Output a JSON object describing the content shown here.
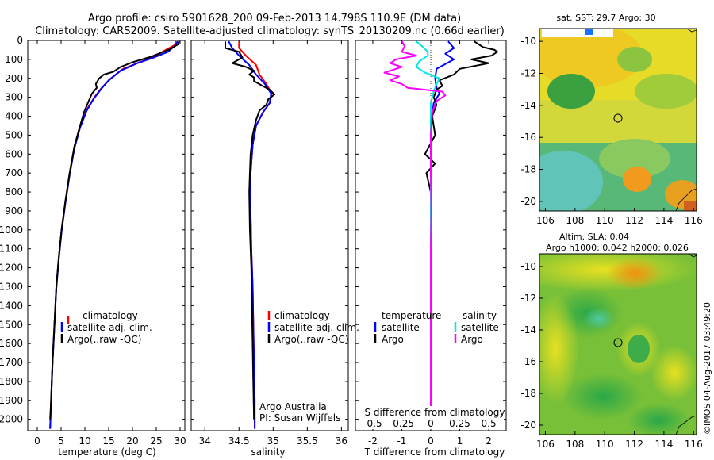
{
  "header": {
    "title_line1": "Argo profile: csiro 5901628_200 09-Feb-2013 14.798S 110.9E (DM data)",
    "title_line2": "Climatology: CARS2009. Satellite-adjusted climatology: synTS_20130209.nc (0.66d earlier)"
  },
  "depth_axis": {
    "ticks": [
      0,
      100,
      200,
      300,
      400,
      500,
      600,
      700,
      800,
      900,
      1000,
      1100,
      1200,
      1300,
      1400,
      1500,
      1600,
      1700,
      1800,
      1900,
      2000
    ],
    "range": [
      0,
      2060
    ]
  },
  "colors": {
    "climatology": "#ff0000",
    "satellite": "#0000ff",
    "argo": "#000000",
    "sal_satellite": "#00e5e5",
    "sal_argo": "#ff00ff"
  },
  "chart_data": [
    {
      "id": "temperature",
      "type": "line",
      "xlabel": "temperature (deg C)",
      "xlim": [
        -2,
        31
      ],
      "xticks": [
        0,
        5,
        10,
        15,
        20,
        25,
        30
      ],
      "legend": [
        "climatology",
        "satellite-adj. clim.",
        "Argo(..raw -QC)"
      ],
      "series": [
        {
          "name": "climatology",
          "color": "#ff0000",
          "points": [
            [
              29.2,
              5
            ],
            [
              28.8,
              25
            ],
            [
              27,
              50
            ],
            [
              25,
              80
            ],
            [
              21.5,
              115
            ],
            [
              18,
              150
            ],
            [
              15.5,
              200
            ],
            [
              13.5,
              250
            ],
            [
              12,
              300
            ],
            [
              10.5,
              360
            ],
            [
              9,
              450
            ],
            [
              7.8,
              560
            ],
            [
              6.8,
              700
            ],
            [
              5.9,
              850
            ],
            [
              5.1,
              1000
            ],
            [
              4.5,
              1150
            ],
            [
              4,
              1300
            ],
            [
              3.6,
              1500
            ],
            [
              3.2,
              1700
            ],
            [
              2.9,
              1900
            ],
            [
              2.7,
              2050
            ]
          ]
        },
        {
          "name": "satellite-adj. clim.",
          "color": "#0000ff",
          "points": [
            [
              29.5,
              5
            ],
            [
              29,
              25
            ],
            [
              27.5,
              60
            ],
            [
              24.5,
              90
            ],
            [
              21,
              120
            ],
            [
              17.5,
              160
            ],
            [
              15,
              210
            ],
            [
              13.3,
              260
            ],
            [
              11.8,
              310
            ],
            [
              10.4,
              370
            ],
            [
              9,
              460
            ],
            [
              7.8,
              570
            ],
            [
              6.8,
              710
            ],
            [
              5.9,
              860
            ],
            [
              5.1,
              1010
            ],
            [
              4.5,
              1160
            ],
            [
              4,
              1310
            ],
            [
              3.6,
              1510
            ],
            [
              3.2,
              1710
            ],
            [
              2.9,
              1910
            ],
            [
              2.7,
              2050
            ]
          ]
        },
        {
          "name": "Argo(..raw -QC)",
          "color": "#000000",
          "points": [
            [
              29.8,
              5
            ],
            [
              29.6,
              20
            ],
            [
              28,
              45
            ],
            [
              26.5,
              60
            ],
            [
              24,
              85
            ],
            [
              20,
              115
            ],
            [
              17.5,
              140
            ],
            [
              16,
              165
            ],
            [
              14,
              180
            ],
            [
              13,
              200
            ],
            [
              12.3,
              230
            ],
            [
              12.5,
              250
            ],
            [
              11.5,
              280
            ],
            [
              10.8,
              320
            ],
            [
              9.8,
              380
            ],
            [
              9,
              450
            ],
            [
              7.8,
              560
            ],
            [
              6.8,
              700
            ],
            [
              5.9,
              850
            ],
            [
              5.1,
              1000
            ],
            [
              4.5,
              1150
            ],
            [
              4,
              1300
            ],
            [
              3.6,
              1500
            ],
            [
              3.2,
              1700
            ],
            [
              2.9,
              1900
            ],
            [
              2.7,
              2000
            ]
          ]
        }
      ]
    },
    {
      "id": "salinity",
      "type": "line",
      "xlabel": "salinity",
      "xlim": [
        33.8,
        36.1
      ],
      "xticks": [
        34,
        34.5,
        35,
        35.5,
        36
      ],
      "legend": [
        "climatology",
        "satellite-adj. clim.",
        "Argo(..raw -QC)"
      ],
      "annotation": [
        "Argo Australia",
        "PI: Susan Wijffels"
      ],
      "series": [
        {
          "name": "climatology",
          "color": "#ff0000",
          "points": [
            [
              34.5,
              5
            ],
            [
              34.5,
              40
            ],
            [
              34.6,
              80
            ],
            [
              34.75,
              130
            ],
            [
              34.8,
              180
            ],
            [
              34.9,
              230
            ],
            [
              34.98,
              280
            ],
            [
              34.95,
              330
            ],
            [
              34.85,
              380
            ],
            [
              34.75,
              450
            ],
            [
              34.7,
              550
            ],
            [
              34.67,
              700
            ],
            [
              34.67,
              900
            ],
            [
              34.68,
              1100
            ],
            [
              34.7,
              1300
            ],
            [
              34.71,
              1500
            ],
            [
              34.72,
              1700
            ],
            [
              34.73,
              1900
            ],
            [
              34.73,
              2050
            ]
          ]
        },
        {
          "name": "satellite-adj. clim.",
          "color": "#0000ff",
          "points": [
            [
              34.35,
              5
            ],
            [
              34.4,
              40
            ],
            [
              34.5,
              80
            ],
            [
              34.65,
              130
            ],
            [
              34.75,
              180
            ],
            [
              34.88,
              230
            ],
            [
              34.97,
              280
            ],
            [
              34.95,
              330
            ],
            [
              34.85,
              380
            ],
            [
              34.75,
              450
            ],
            [
              34.7,
              550
            ],
            [
              34.67,
              700
            ],
            [
              34.67,
              900
            ],
            [
              34.68,
              1100
            ],
            [
              34.7,
              1300
            ],
            [
              34.71,
              1500
            ],
            [
              34.72,
              1700
            ],
            [
              34.73,
              1900
            ],
            [
              34.73,
              2050
            ]
          ]
        },
        {
          "name": "Argo(..raw -QC)",
          "color": "#000000",
          "points": [
            [
              34.3,
              5
            ],
            [
              34.3,
              40
            ],
            [
              34.5,
              60
            ],
            [
              34.55,
              90
            ],
            [
              34.4,
              120
            ],
            [
              34.6,
              140
            ],
            [
              34.72,
              160
            ],
            [
              34.65,
              180
            ],
            [
              34.72,
              195
            ],
            [
              34.72,
              215
            ],
            [
              34.82,
              235
            ],
            [
              34.95,
              260
            ],
            [
              35.02,
              285
            ],
            [
              34.93,
              310
            ],
            [
              34.9,
              340
            ],
            [
              34.8,
              370
            ],
            [
              34.75,
              420
            ],
            [
              34.7,
              500
            ],
            [
              34.67,
              600
            ],
            [
              34.66,
              700
            ],
            [
              34.65,
              800
            ],
            [
              34.66,
              1000
            ],
            [
              34.68,
              1200
            ],
            [
              34.69,
              1400
            ],
            [
              34.7,
              1600
            ],
            [
              34.71,
              1800
            ],
            [
              34.72,
              2000
            ]
          ]
        }
      ]
    },
    {
      "id": "difference",
      "type": "line",
      "xlabel": "T difference from climatology",
      "xlabel_top": "S difference from climatology",
      "xlim": [
        -2.6,
        2.6
      ],
      "xticks": [
        -2,
        -1,
        0,
        1,
        2
      ],
      "top_ticks": [
        {
          "label": "-0.5",
          "x": -2
        },
        {
          "label": "-0.25",
          "x": -1
        },
        {
          "label": "0",
          "x": 0
        },
        {
          "label": "0.25",
          "x": 1
        },
        {
          "label": "0.5",
          "x": 2
        }
      ],
      "legend_titles": [
        "temperature",
        "salinity"
      ],
      "legend": [
        "satellite",
        "Argo",
        "satellite",
        "Argo"
      ],
      "series": [
        {
          "name": "T satellite",
          "color": "#0000ff",
          "points": [
            [
              0.6,
              5
            ],
            [
              0.8,
              40
            ],
            [
              0.5,
              70
            ],
            [
              0.8,
              100
            ],
            [
              0.2,
              150
            ],
            [
              0.15,
              200
            ],
            [
              0.2,
              250
            ],
            [
              0.3,
              280
            ],
            [
              0.1,
              330
            ],
            [
              0.05,
              400
            ],
            [
              0,
              500
            ],
            [
              0,
              700
            ],
            [
              0,
              900
            ],
            [
              0,
              1200
            ],
            [
              0,
              1500
            ],
            [
              0,
              1800
            ],
            [
              0,
              2000
            ]
          ]
        },
        {
          "name": "T Argo",
          "color": "#000000",
          "points": [
            [
              1.5,
              5
            ],
            [
              1.8,
              35
            ],
            [
              2.2,
              50
            ],
            [
              2.3,
              60
            ],
            [
              2.1,
              80
            ],
            [
              1.4,
              100
            ],
            [
              2.0,
              120
            ],
            [
              1.0,
              150
            ],
            [
              0.8,
              180
            ],
            [
              0.3,
              210
            ],
            [
              0.4,
              240
            ],
            [
              0.2,
              260
            ],
            [
              0.1,
              300
            ],
            [
              0.2,
              340
            ],
            [
              0.05,
              400
            ],
            [
              0.15,
              500
            ],
            [
              -0.2,
              600
            ],
            [
              0.15,
              650
            ],
            [
              -0.15,
              700
            ],
            [
              0,
              800
            ],
            [
              0,
              1000
            ],
            [
              0,
              1400
            ],
            [
              0,
              1800
            ],
            [
              0,
              2000
            ]
          ]
        },
        {
          "name": "S satellite",
          "color": "#00e5e5",
          "points": [
            [
              -0.5,
              5
            ],
            [
              -0.3,
              30
            ],
            [
              -0.1,
              60
            ],
            [
              -0.1,
              80
            ],
            [
              -0.4,
              110
            ],
            [
              -0.5,
              140
            ],
            [
              -0.2,
              170
            ],
            [
              0.3,
              200
            ],
            [
              0.2,
              230
            ],
            [
              0.1,
              270
            ],
            [
              0.0,
              330
            ],
            [
              0,
              400
            ],
            [
              0,
              600
            ],
            [
              0,
              800
            ],
            [
              0,
              1200
            ],
            [
              0,
              1600
            ],
            [
              0,
              2000
            ]
          ]
        },
        {
          "name": "S Argo",
          "color": "#ff00ff",
          "points": [
            [
              -1.0,
              5
            ],
            [
              -0.9,
              30
            ],
            [
              -1.0,
              60
            ],
            [
              -0.5,
              80
            ],
            [
              -1.2,
              100
            ],
            [
              -1.4,
              120
            ],
            [
              -1.0,
              140
            ],
            [
              -1.6,
              170
            ],
            [
              -1.1,
              190
            ],
            [
              -1.4,
              210
            ],
            [
              -1.0,
              230
            ],
            [
              -0.8,
              250
            ],
            [
              0.4,
              270
            ],
            [
              0.5,
              290
            ],
            [
              0.2,
              320
            ],
            [
              0.05,
              380
            ],
            [
              0,
              500
            ],
            [
              0,
              700
            ],
            [
              0.02,
              900
            ],
            [
              0,
              1100
            ],
            [
              0,
              1300
            ],
            [
              0,
              1500
            ],
            [
              0,
              1700
            ],
            [
              0,
              1900
            ],
            [
              0,
              2000
            ]
          ]
        }
      ]
    }
  ],
  "maps": [
    {
      "id": "sst",
      "title": "sat. SST: 29.7 Argo: 30",
      "subtitle": "",
      "xlim": [
        105.6,
        116.2
      ],
      "ylim": [
        -20.6,
        -9.2
      ],
      "xticks": [
        106,
        108,
        110,
        112,
        114,
        116
      ],
      "yticks": [
        -10,
        -12,
        -14,
        -16,
        -18,
        -20
      ],
      "float": [
        110.9,
        -14.798
      ]
    },
    {
      "id": "sla",
      "title": "Altim. SLA: 0.04",
      "subtitle": "Argo h1000: 0.042 h2000: 0.026",
      "xlim": [
        105.6,
        116.2
      ],
      "ylim": [
        -20.6,
        -9.2
      ],
      "xticks": [
        106,
        108,
        110,
        112,
        114,
        116
      ],
      "yticks": [
        -10,
        -12,
        -14,
        -16,
        -18,
        -20
      ],
      "float": [
        110.9,
        -14.798
      ]
    }
  ],
  "footer": {
    "credit": "©IMOS 04-Aug-2017 03:49:20"
  }
}
